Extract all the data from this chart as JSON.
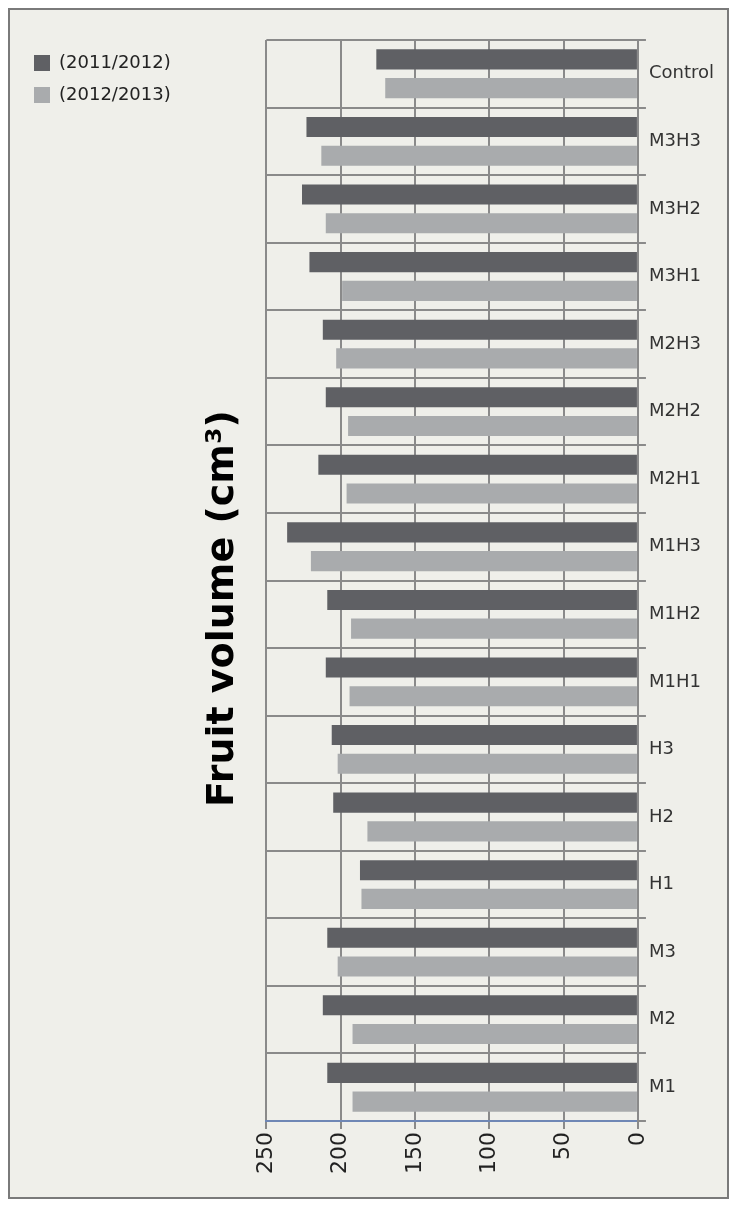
{
  "chart_data": {
    "type": "bar",
    "orientation": "horizontal",
    "title": "Fruit volume (cm³)",
    "categories": [
      "Control",
      "M3H3",
      "M3H2",
      "M3H1",
      "M2H3",
      "M2H2",
      "M2H1",
      "M1H3",
      "M1H2",
      "M1H1",
      "H3",
      "H2",
      "H1",
      "M3",
      "M2",
      "M1"
    ],
    "series": [
      {
        "name": "(2011/2012)",
        "color": "#5f6064",
        "values": [
          176,
          223,
          226,
          221,
          212,
          210,
          215,
          236,
          209,
          210,
          206,
          205,
          187,
          209,
          212,
          209
        ]
      },
      {
        "name": "(2012/2013)",
        "color": "#a9abad",
        "values": [
          170,
          213,
          210,
          199,
          203,
          195,
          196,
          220,
          193,
          194,
          202,
          182,
          186,
          202,
          192,
          192
        ]
      }
    ],
    "xlim": [
      250,
      0
    ],
    "xticks": [
      0,
      50,
      100,
      150,
      200,
      250
    ],
    "grid": true,
    "legend": "left"
  }
}
